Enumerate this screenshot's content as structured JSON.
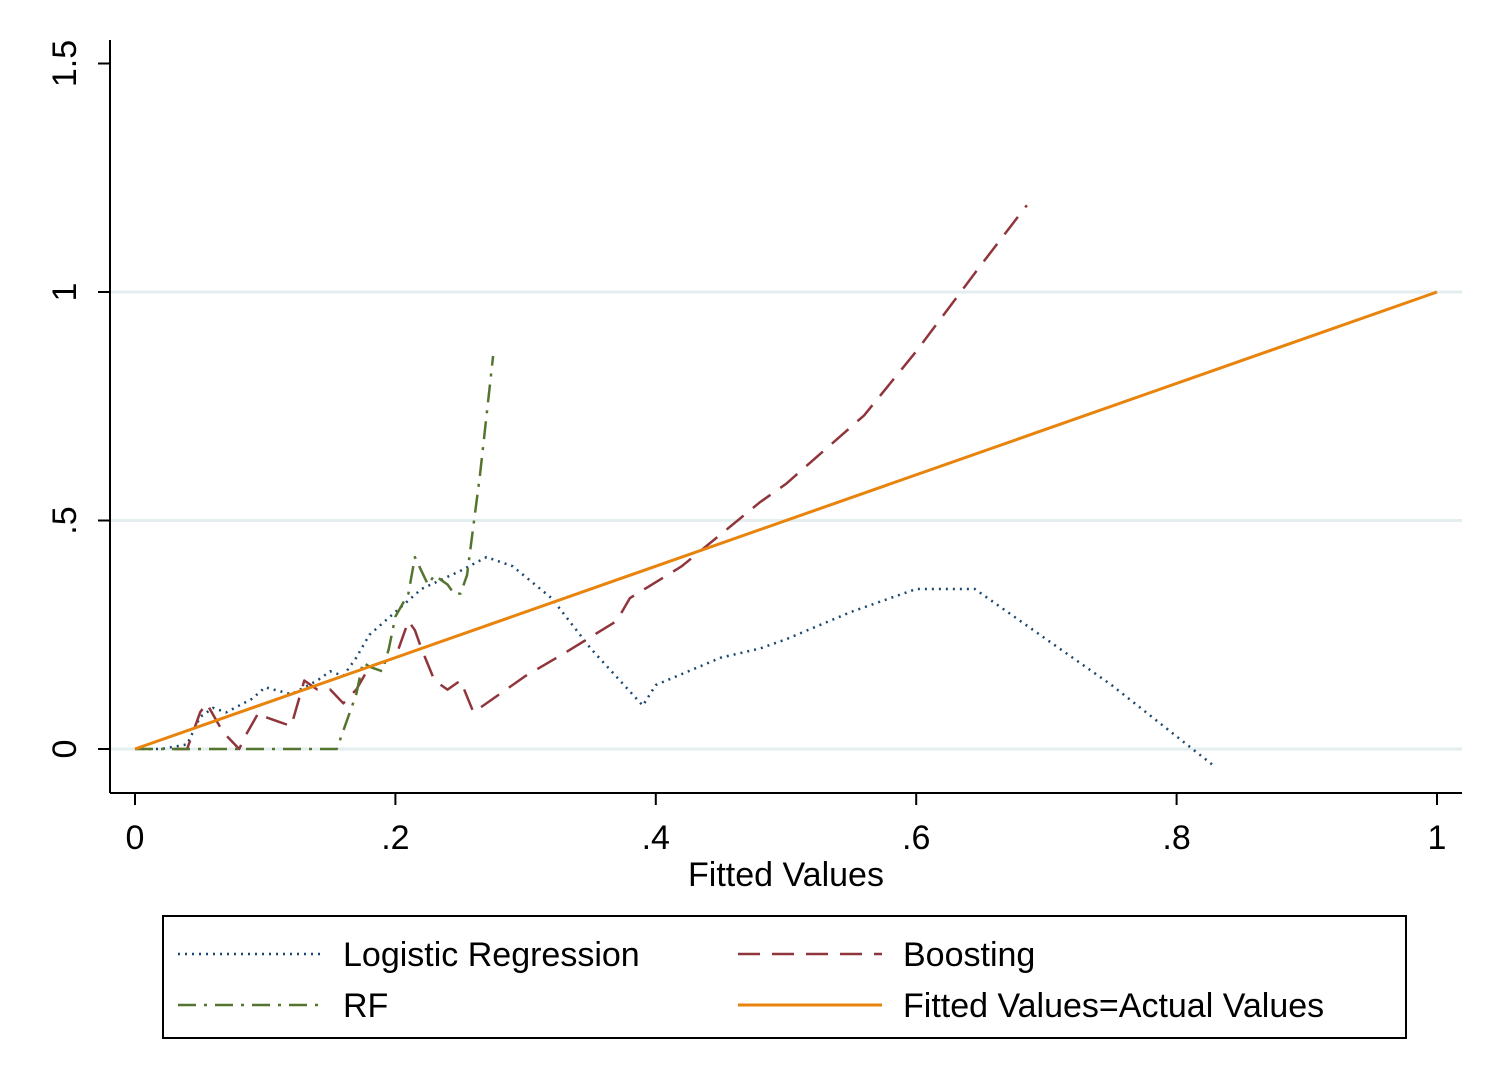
{
  "chart_data": {
    "type": "line",
    "xlabel": "Fitted Values",
    "ylabel": "",
    "xlim": [
      0,
      1
    ],
    "ylim": [
      -0.1,
      1.5
    ],
    "x_ticks": [
      0,
      0.2,
      0.4,
      0.6,
      0.8,
      1
    ],
    "x_tick_labels": [
      "0",
      ".2",
      ".4",
      ".6",
      ".8",
      "1"
    ],
    "y_ticks": [
      0,
      0.5,
      1,
      1.5
    ],
    "y_tick_labels": [
      "0",
      ".5",
      "1",
      "1.5"
    ],
    "grid": "horizontal",
    "legend_position": "bottom",
    "series": [
      {
        "name": "Logistic Regression",
        "color": "#1a476f",
        "dash": "dot",
        "points": [
          [
            0,
            0
          ],
          [
            0.02,
            0
          ],
          [
            0.04,
            0.01
          ],
          [
            0.05,
            0.07
          ],
          [
            0.06,
            0.09
          ],
          [
            0.07,
            0.08
          ],
          [
            0.09,
            0.11
          ],
          [
            0.1,
            0.135
          ],
          [
            0.12,
            0.12
          ],
          [
            0.14,
            0.15
          ],
          [
            0.15,
            0.17
          ],
          [
            0.16,
            0.16
          ],
          [
            0.17,
            0.2
          ],
          [
            0.18,
            0.25
          ],
          [
            0.2,
            0.3
          ],
          [
            0.22,
            0.35
          ],
          [
            0.25,
            0.39
          ],
          [
            0.27,
            0.42
          ],
          [
            0.29,
            0.4
          ],
          [
            0.32,
            0.33
          ],
          [
            0.35,
            0.22
          ],
          [
            0.39,
            0.095
          ],
          [
            0.4,
            0.14
          ],
          [
            0.45,
            0.2
          ],
          [
            0.48,
            0.22
          ],
          [
            0.5,
            0.24
          ],
          [
            0.55,
            0.3
          ],
          [
            0.6,
            0.35
          ],
          [
            0.645,
            0.35
          ],
          [
            0.7,
            0.24
          ],
          [
            0.75,
            0.14
          ],
          [
            0.83,
            -0.04
          ]
        ]
      },
      {
        "name": "Boosting",
        "color": "#90353b",
        "dash": "dash",
        "points": [
          [
            0.03,
            0
          ],
          [
            0.04,
            0
          ],
          [
            0.05,
            0.08
          ],
          [
            0.055,
            0.1
          ],
          [
            0.065,
            0.05
          ],
          [
            0.07,
            0.03
          ],
          [
            0.08,
            0
          ],
          [
            0.085,
            0.03
          ],
          [
            0.095,
            0.08
          ],
          [
            0.1,
            0.07
          ],
          [
            0.11,
            0.06
          ],
          [
            0.12,
            0.05
          ],
          [
            0.13,
            0.15
          ],
          [
            0.14,
            0.13
          ],
          [
            0.15,
            0.13
          ],
          [
            0.16,
            0.1
          ],
          [
            0.17,
            0.13
          ],
          [
            0.18,
            0.18
          ],
          [
            0.19,
            0.19
          ],
          [
            0.2,
            0.2
          ],
          [
            0.21,
            0.28
          ],
          [
            0.215,
            0.26
          ],
          [
            0.22,
            0.22
          ],
          [
            0.23,
            0.15
          ],
          [
            0.24,
            0.13
          ],
          [
            0.25,
            0.15
          ],
          [
            0.26,
            0.08
          ],
          [
            0.3,
            0.16
          ],
          [
            0.33,
            0.21
          ],
          [
            0.37,
            0.28
          ],
          [
            0.38,
            0.33
          ],
          [
            0.42,
            0.4
          ],
          [
            0.48,
            0.54
          ],
          [
            0.5,
            0.58
          ],
          [
            0.56,
            0.73
          ],
          [
            0.6,
            0.87
          ],
          [
            0.65,
            1.06
          ],
          [
            0.685,
            1.19
          ]
        ]
      },
      {
        "name": "RF",
        "color": "#55752f",
        "dash": "dashdot",
        "points": [
          [
            0,
            0
          ],
          [
            0.155,
            0
          ],
          [
            0.16,
            0.04
          ],
          [
            0.17,
            0.12
          ],
          [
            0.175,
            0.19
          ],
          [
            0.18,
            0.18
          ],
          [
            0.19,
            0.17
          ],
          [
            0.195,
            0.22
          ],
          [
            0.2,
            0.29
          ],
          [
            0.21,
            0.34
          ],
          [
            0.215,
            0.42
          ],
          [
            0.225,
            0.36
          ],
          [
            0.23,
            0.38
          ],
          [
            0.24,
            0.36
          ],
          [
            0.245,
            0.34
          ],
          [
            0.25,
            0.34
          ],
          [
            0.255,
            0.38
          ],
          [
            0.265,
            0.6
          ],
          [
            0.275,
            0.86
          ]
        ]
      },
      {
        "name": "Fitted Values=Actual Values",
        "color": "#e8830c",
        "dash": "solid",
        "points": [
          [
            0,
            0
          ],
          [
            1,
            1
          ]
        ]
      }
    ]
  }
}
